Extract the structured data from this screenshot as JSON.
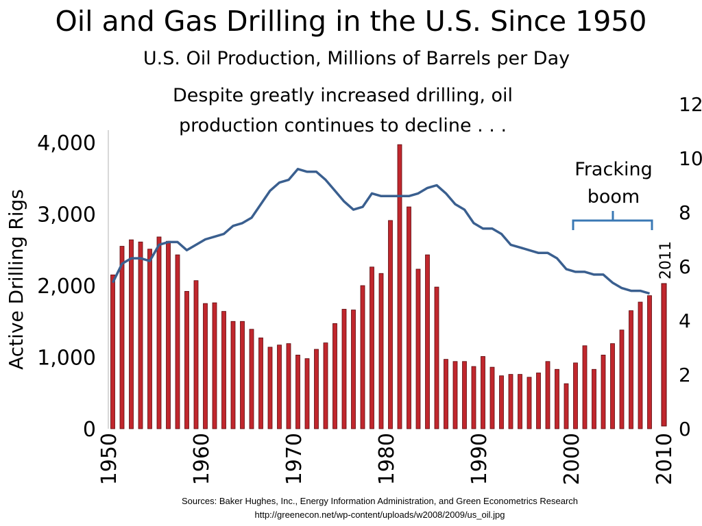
{
  "title": "Oil and Gas Drilling in the U.S. Since 1950",
  "subtitle": "U.S. Oil Production, Millions of Barrels per Day",
  "annotation": "Despite greatly increased drilling, oil production continues to decline . . .",
  "fracking_label": "Fracking boom",
  "year_marker": "2011",
  "sources_line1": "Sources: Baker Hughes, Inc., Energy Information Administration, and Green Econometrics Research",
  "sources_line2": "http://greenecon.net/wp-content/uploads/w2008/2009/us_oil.jpg",
  "colors": {
    "bars": "#c0272d",
    "bar_edge": "#5a0a0e",
    "line": "#3a5f8f",
    "bracket": "#3a78b4"
  },
  "chart_data": {
    "type": "bar",
    "ylabel": "Active Drilling Rigs",
    "xlim": [
      1950,
      2010
    ],
    "ylim_left": [
      0,
      4000
    ],
    "ylim_right": [
      0,
      12
    ],
    "x_ticks": [
      "1950",
      "1960",
      "1970",
      "1980",
      "1990",
      "2000",
      "2010"
    ],
    "y_ticks_left": [
      "0",
      "1,000",
      "2,000",
      "3,000",
      "4,000"
    ],
    "y_ticks_right": [
      "0",
      "2",
      "4",
      "6",
      "8",
      "10",
      "12"
    ],
    "series": [
      {
        "axis": "left",
        "type": "bar",
        "x": [
          1950,
          1951,
          1952,
          1953,
          1954,
          1955,
          1956,
          1957,
          1958,
          1959,
          1960,
          1961,
          1962,
          1963,
          1964,
          1965,
          1966,
          1967,
          1968,
          1969,
          1970,
          1971,
          1972,
          1973,
          1974,
          1975,
          1976,
          1977,
          1978,
          1979,
          1980,
          1981,
          1982,
          1983,
          1984,
          1985,
          1986,
          1987,
          1988,
          1989,
          1990,
          1991,
          1992,
          1993,
          1994,
          1995,
          1996,
          1997,
          1998,
          1999,
          2000,
          2001,
          2002,
          2003,
          2004,
          2005,
          2006,
          2007,
          2008
        ],
        "values": [
          2150,
          2550,
          2640,
          2610,
          2510,
          2680,
          2620,
          2430,
          1920,
          2070,
          1750,
          1760,
          1640,
          1500,
          1500,
          1390,
          1270,
          1140,
          1170,
          1190,
          1030,
          980,
          1110,
          1200,
          1470,
          1670,
          1660,
          2000,
          2260,
          2170,
          2910,
          3970,
          3100,
          2230,
          2430,
          1980,
          970,
          940,
          940,
          870,
          1010,
          860,
          740,
          760,
          760,
          720,
          780,
          940,
          830,
          630,
          920,
          1160,
          830,
          1030,
          1190,
          1380,
          1650,
          1770,
          1860
        ]
      },
      {
        "axis": "right",
        "type": "line",
        "x": [
          1950,
          1951,
          1952,
          1953,
          1954,
          1955,
          1956,
          1957,
          1958,
          1959,
          1960,
          1961,
          1962,
          1963,
          1964,
          1965,
          1966,
          1967,
          1968,
          1969,
          1970,
          1971,
          1972,
          1973,
          1974,
          1975,
          1976,
          1977,
          1978,
          1979,
          1980,
          1981,
          1982,
          1983,
          1984,
          1985,
          1986,
          1987,
          1988,
          1989,
          1990,
          1991,
          1992,
          1993,
          1994,
          1995,
          1996,
          1997,
          1998,
          1999,
          2000,
          2001,
          2002,
          2003,
          2004,
          2005,
          2006,
          2007,
          2008
        ],
        "values": [
          5.4,
          6.1,
          6.3,
          6.3,
          6.2,
          6.8,
          6.9,
          6.9,
          6.6,
          6.8,
          7.0,
          7.1,
          7.2,
          7.5,
          7.6,
          7.8,
          8.3,
          8.8,
          9.1,
          9.2,
          9.6,
          9.5,
          9.5,
          9.2,
          8.8,
          8.4,
          8.1,
          8.2,
          8.7,
          8.6,
          8.6,
          8.6,
          8.6,
          8.7,
          8.9,
          9.0,
          8.7,
          8.3,
          8.1,
          7.6,
          7.4,
          7.4,
          7.2,
          6.8,
          6.7,
          6.6,
          6.5,
          6.5,
          6.3,
          5.9,
          5.8,
          5.8,
          5.7,
          5.7,
          5.4,
          5.2,
          5.1,
          5.1,
          5.0
        ]
      }
    ]
  }
}
